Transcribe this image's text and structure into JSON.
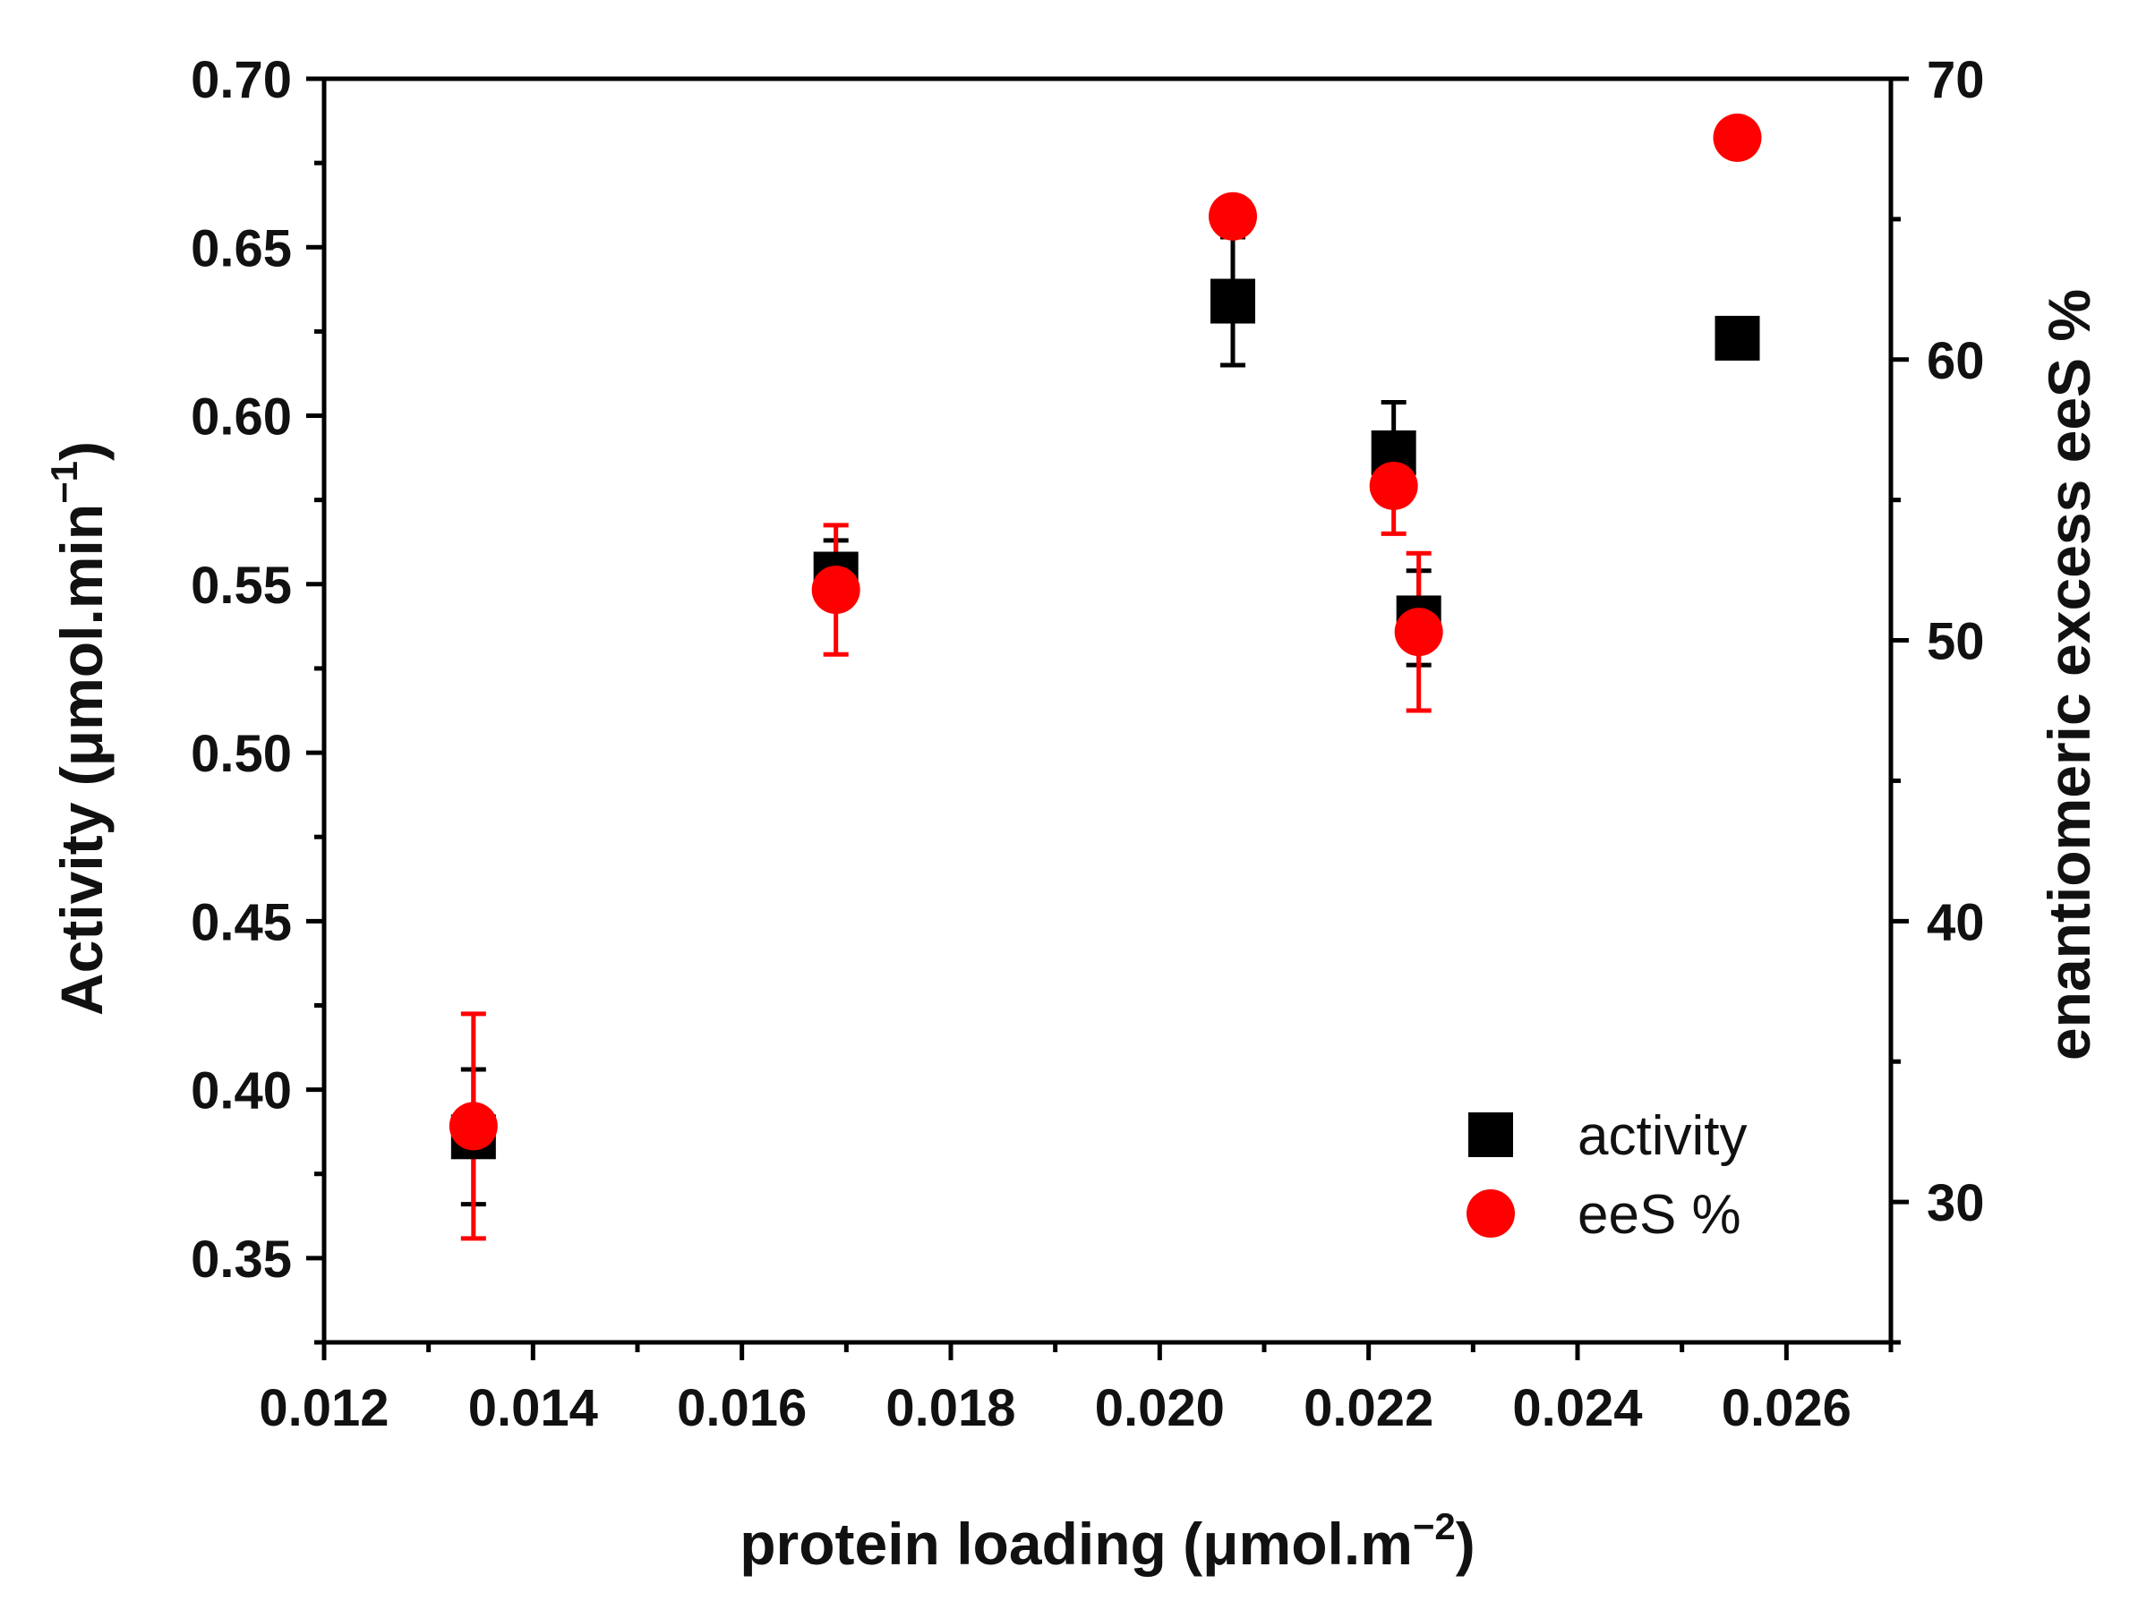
{
  "chart_data": {
    "type": "scatter",
    "xlabel": "protein loading (μmol.m",
    "xlabel_sup": "−2",
    "xlabel_suffix": ")",
    "ylabel": "Activity (μmol.min",
    "ylabel_sup": "−1",
    "ylabel_suffix": ")",
    "y2label": "enantiomeric excess eeS %",
    "xlim": [
      0.012,
      0.027
    ],
    "ylim": [
      0.325,
      0.7
    ],
    "y2lim": [
      25,
      70
    ],
    "x_ticks": [
      "0.012",
      "0.014",
      "0.016",
      "0.018",
      "0.020",
      "0.022",
      "0.024",
      "0.026"
    ],
    "y_ticks": [
      "0.35",
      "0.40",
      "0.45",
      "0.50",
      "0.55",
      "0.60",
      "0.65",
      "0.70"
    ],
    "y2_ticks": [
      "30",
      "40",
      "50",
      "60",
      "70"
    ],
    "series": [
      {
        "name": "activity",
        "axis": "left",
        "marker": "square",
        "color": "#000000",
        "points": [
          {
            "x": 0.01343,
            "y": 0.386,
            "err": 0.02
          },
          {
            "x": 0.0169,
            "y": 0.553,
            "err": 0.01
          },
          {
            "x": 0.0207,
            "y": 0.634,
            "err": 0.019
          },
          {
            "x": 0.02224,
            "y": 0.589,
            "err": 0.015
          },
          {
            "x": 0.02248,
            "y": 0.54,
            "err": 0.014
          },
          {
            "x": 0.02553,
            "y": 0.623,
            "err": 0.002
          }
        ]
      },
      {
        "name": "eeS %",
        "axis": "right",
        "marker": "circle",
        "color": "#ff0000",
        "points": [
          {
            "x": 0.01343,
            "y": 32.7,
            "err": 4.0
          },
          {
            "x": 0.0169,
            "y": 51.8,
            "err": 2.3
          },
          {
            "x": 0.0207,
            "y": 65.1,
            "err": 0.6
          },
          {
            "x": 0.02224,
            "y": 55.5,
            "err": 1.7
          },
          {
            "x": 0.02248,
            "y": 50.3,
            "err": 2.8
          },
          {
            "x": 0.02553,
            "y": 67.9,
            "err": 0.5
          }
        ]
      }
    ],
    "legend": {
      "position": "bottom-right",
      "entries": [
        "activity",
        "eeS %"
      ]
    }
  }
}
